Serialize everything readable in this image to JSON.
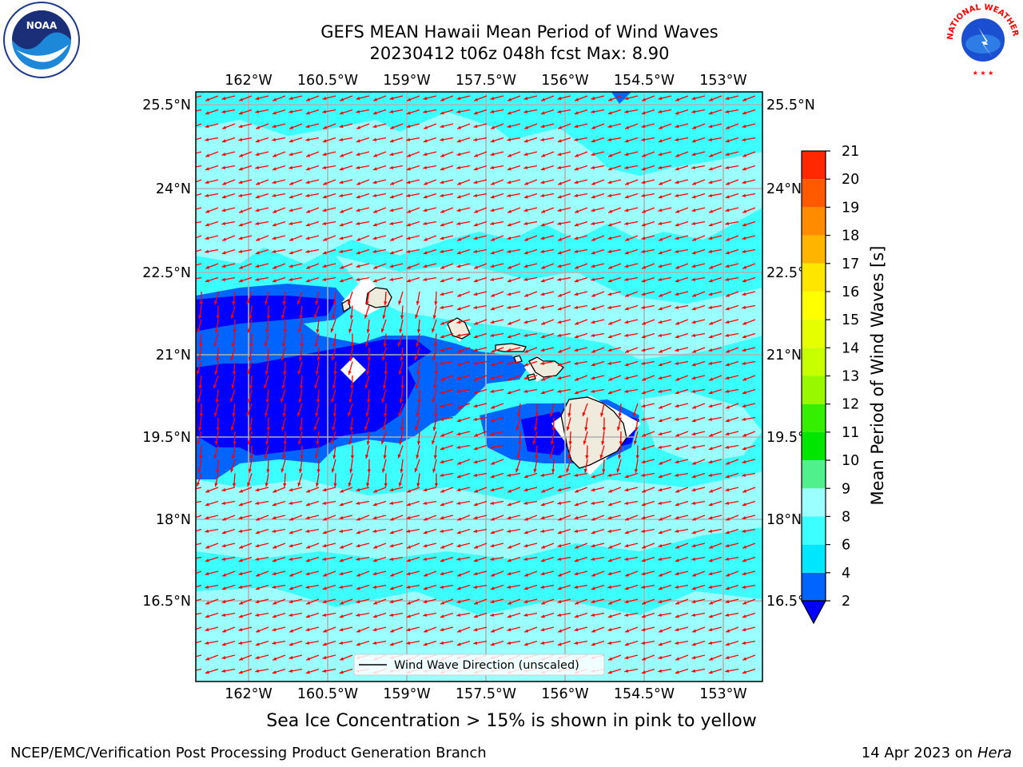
{
  "header": {
    "title_line1": "GEFS MEAN Hawaii Mean Period of Wind Waves",
    "title_line2": "20230412 t06z 048h fcst   Max: 8.90"
  },
  "map": {
    "lon_ticks": [
      "162°W",
      "160.5°W",
      "159°W",
      "157.5°W",
      "156°W",
      "154.5°W",
      "153°W"
    ],
    "lat_ticks": [
      "25.5°N",
      "24°N",
      "22.5°N",
      "21°N",
      "19.5°N",
      "18°N",
      "16.5°N"
    ],
    "legend_label": "Wind Wave Direction (unscaled)",
    "arrow_color": "#ff0000",
    "land_color": "#efebdc",
    "grid_color": "#b0b0b0"
  },
  "colorbar": {
    "label": "Mean Period of Wind Waves [s]",
    "tick_labels": [
      "2",
      "4",
      "6",
      "8",
      "9",
      "10",
      "11",
      "12",
      "13",
      "14",
      "15",
      "16",
      "17",
      "18",
      "19",
      "20",
      "21"
    ],
    "colors": [
      "#0064ff",
      "#00e6ff",
      "#3cffff",
      "#9cffff",
      "#50f08c",
      "#00e600",
      "#34f000",
      "#98f800",
      "#c8ff00",
      "#e6ff00",
      "#ffff00",
      "#ffe600",
      "#ffb400",
      "#ff8c00",
      "#ff5a00",
      "#ff2800",
      "#ff0000"
    ],
    "extend_color": "#0000ff"
  },
  "caption": "Sea Ice Concentration > 15% is shown in pink to yellow",
  "footer": {
    "left": "NCEP/EMC/Verification Post Processing Product Generation Branch",
    "right_date": "14 Apr 2023 on",
    "right_host": "Hera"
  },
  "logos": {
    "noaa_text": "NOAA",
    "nws_text": "NATIONAL WEATHER SERVICE"
  }
}
